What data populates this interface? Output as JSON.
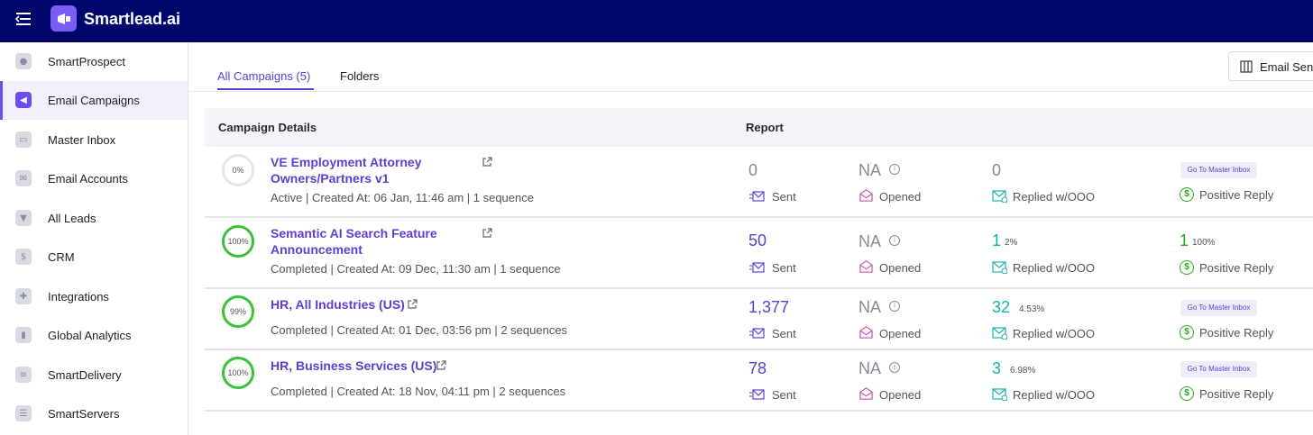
{
  "app": {
    "name": "Smartlead.ai"
  },
  "sidebar": {
    "items": [
      {
        "label": "SmartProspect",
        "icon": "people-icon"
      },
      {
        "label": "Email Campaigns",
        "icon": "megaphone-icon",
        "active": true
      },
      {
        "label": "Master Inbox",
        "icon": "inbox-icon"
      },
      {
        "label": "Email Accounts",
        "icon": "envelope-icon"
      },
      {
        "label": "All Leads",
        "icon": "leads-icon"
      },
      {
        "label": "CRM",
        "icon": "dollar-icon"
      },
      {
        "label": "Integrations",
        "icon": "puzzle-icon"
      },
      {
        "label": "Global Analytics",
        "icon": "bar-chart-icon"
      },
      {
        "label": "SmartDelivery",
        "icon": "layers-icon"
      },
      {
        "label": "SmartServers",
        "icon": "server-icon"
      }
    ]
  },
  "tabs": {
    "all": "All Campaigns (5)",
    "folders": "Folders"
  },
  "toolbar": {
    "email_sent": "Email Sent"
  },
  "table": {
    "headers": {
      "details": "Campaign Details",
      "report": "Report"
    },
    "labels": {
      "sent": "Sent",
      "opened": "Opened",
      "replied": "Replied w/OOO",
      "positive": "Positive Reply",
      "master": "Go To Master Inbox"
    },
    "rows": [
      {
        "progress": "0%",
        "title_1": "VE Employment Attorney",
        "title_2": "Owners/Partners v1",
        "meta": "Active | Created At: 06 Jan, 11:46 am | 1 sequence",
        "sent": "0",
        "opened": "NA",
        "replied": "0",
        "replied_pct": "",
        "positive": "",
        "positive_pct": ""
      },
      {
        "progress": "100%",
        "title_1": "Semantic AI Search Feature",
        "title_2": "Announcement",
        "meta": "Completed | Created At: 09 Dec, 11:30 am | 1 sequence",
        "sent": "50",
        "opened": "NA",
        "replied": "1",
        "replied_pct": "2%",
        "positive": "1",
        "positive_pct": "100%"
      },
      {
        "progress": "99%",
        "title_1": "HR, All Industries (US)",
        "title_2": "",
        "meta": "Completed | Created At: 01 Dec, 03:56 pm | 2 sequences",
        "sent": "1,377",
        "opened": "NA",
        "replied": "32",
        "replied_pct": "4.53%",
        "positive": "",
        "positive_pct": ""
      },
      {
        "progress": "100%",
        "title_1": "HR, Business Services (US)",
        "title_2": "",
        "meta": "Completed | Created At: 18 Nov, 04:11 pm | 2 sequences",
        "sent": "78",
        "opened": "NA",
        "replied": "3",
        "replied_pct": "6.98%",
        "positive": "",
        "positive_pct": ""
      }
    ]
  },
  "colors": {
    "topbar": "#00066b",
    "accent": "#5d3fd3",
    "teal": "#19b2a8",
    "green": "#27a91d"
  }
}
